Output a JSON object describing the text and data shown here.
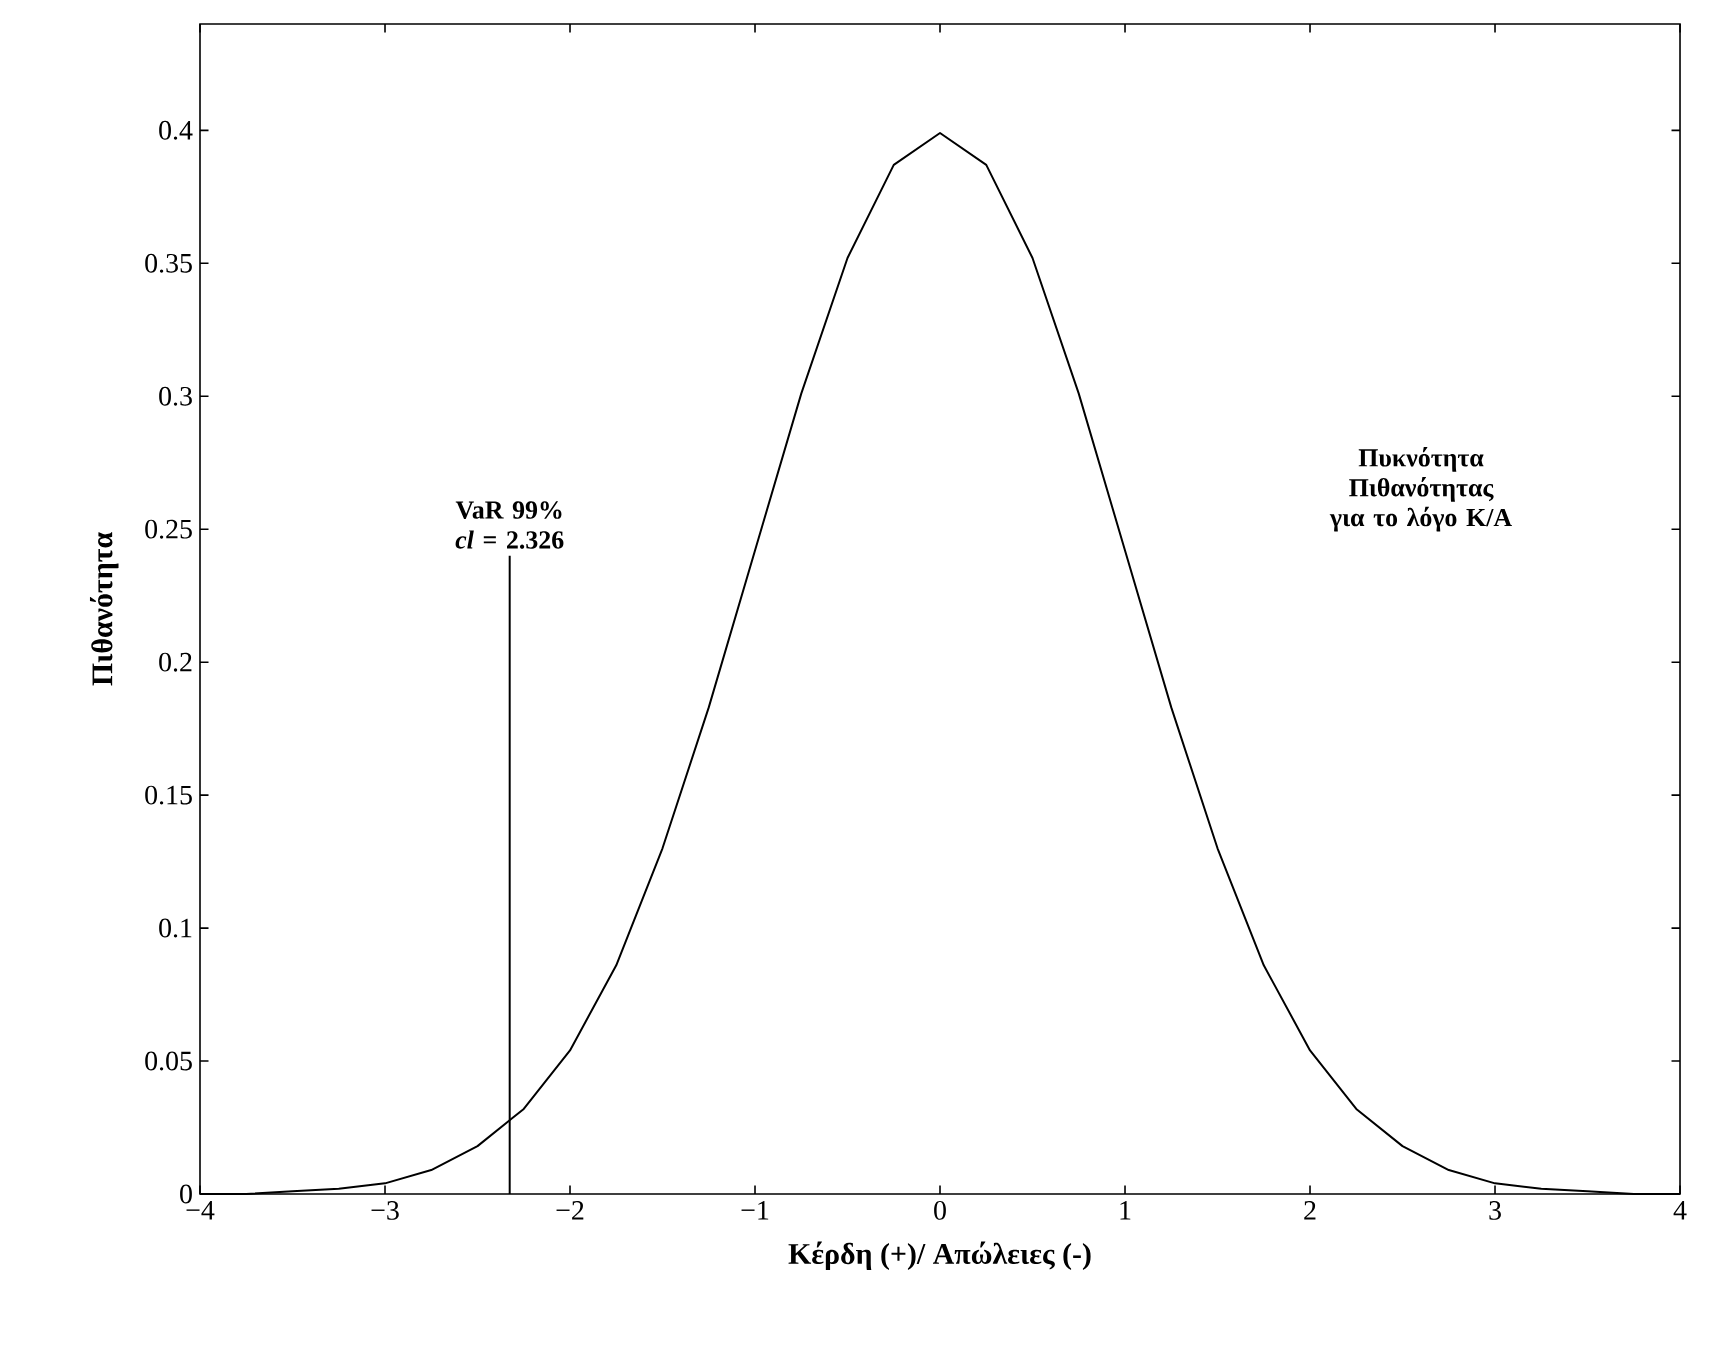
{
  "chart_data": {
    "type": "line",
    "xlabel": "Κέρδη (+)/ Απώλειες (-)",
    "ylabel": "Πιθανότητα",
    "x": [
      -4,
      -3.75,
      -3.5,
      -3.25,
      -3,
      -2.75,
      -2.5,
      -2.25,
      -2,
      -1.75,
      -1.5,
      -1.25,
      -1,
      -0.75,
      -0.5,
      -0.25,
      0,
      0.25,
      0.5,
      0.75,
      1,
      1.25,
      1.5,
      1.75,
      2,
      2.25,
      2.5,
      2.75,
      3,
      3.25,
      3.5,
      3.75,
      4
    ],
    "series": [
      {
        "color": "#000000",
        "values": [
          0.0,
          0.0,
          0.001,
          0.002,
          0.004,
          0.009,
          0.018,
          0.032,
          0.054,
          0.086,
          0.13,
          0.183,
          0.242,
          0.301,
          0.352,
          0.387,
          0.399,
          0.387,
          0.352,
          0.301,
          0.242,
          0.183,
          0.13,
          0.086,
          0.054,
          0.032,
          0.018,
          0.009,
          0.004,
          0.002,
          0.001,
          0.0,
          0.0
        ]
      }
    ],
    "xlim": [
      -4,
      4
    ],
    "ylim": [
      0,
      0.44
    ],
    "xticks": [
      {
        "value": -4,
        "label": "−4"
      },
      {
        "value": -3,
        "label": "−3"
      },
      {
        "value": -2,
        "label": "−2"
      },
      {
        "value": -1,
        "label": "−1"
      },
      0,
      1,
      2,
      3,
      4
    ],
    "yticks": [
      0,
      0.05,
      0.1,
      0.15,
      0.2,
      0.25,
      0.3,
      0.35,
      0.4
    ],
    "ref_lines": [
      {
        "axis": "x",
        "value": -2.326
      }
    ],
    "annotations": [
      "**VaR    99% *cl* = 2.326**",
      "Πυκνότητα Πιθανότητας για το λόγο Κ/Α"
    ],
    "line_style": "solid"
  }
}
